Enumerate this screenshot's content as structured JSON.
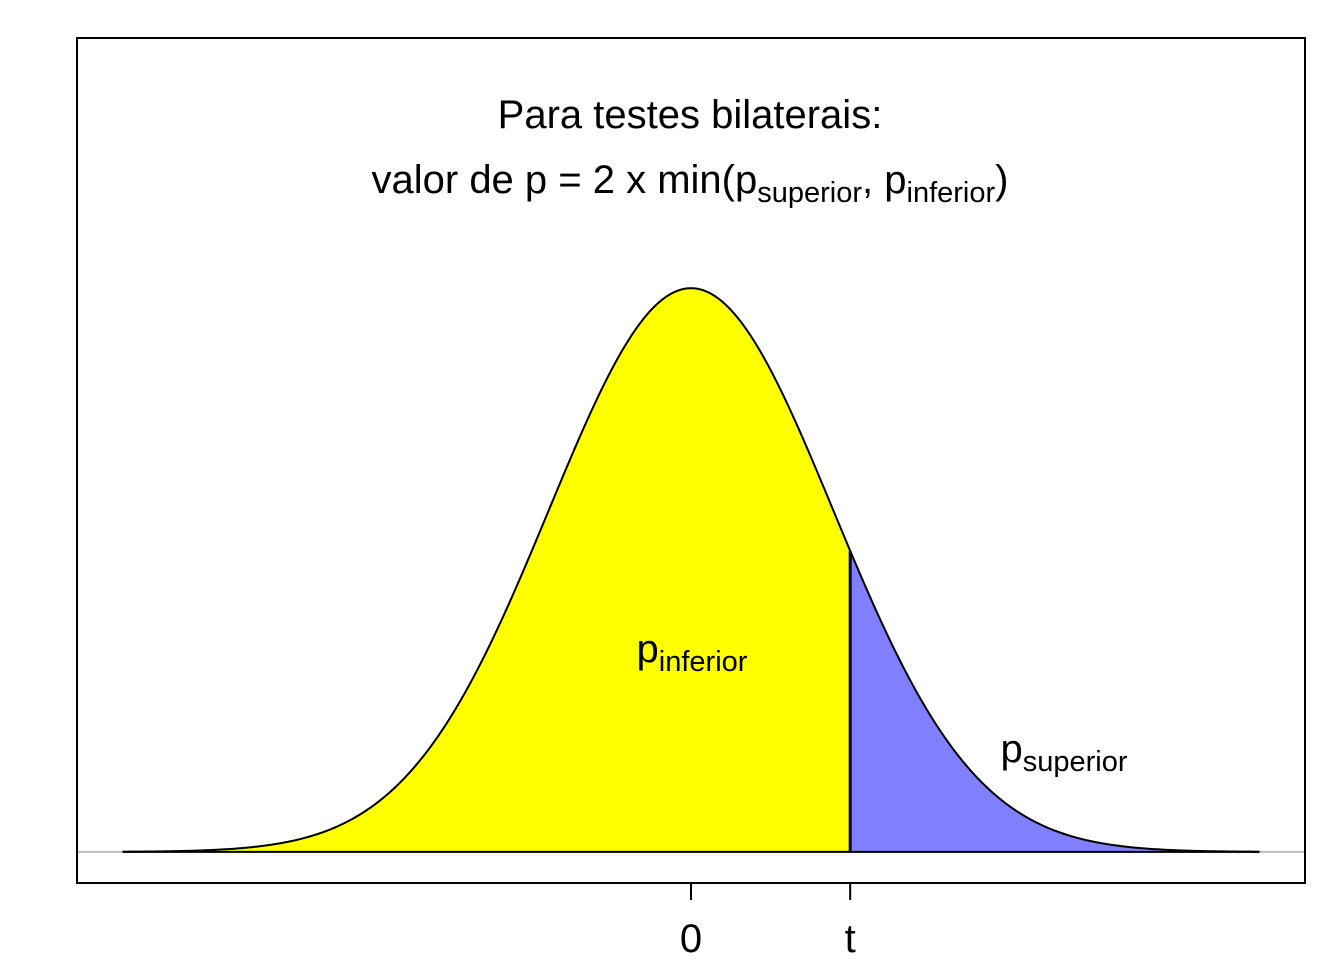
{
  "chart_data": {
    "type": "density",
    "distribution": "normal",
    "mean": 0,
    "sd": 1,
    "curve_range": [
      -4,
      4
    ],
    "t": 1.12,
    "title": "Para testes bilaterais:",
    "subtitle": {
      "parts": [
        "valor de p = 2 x min(p",
        "superior",
        ", p",
        "inferior",
        ")"
      ]
    },
    "annotations": {
      "lower": {
        "main": "p",
        "sub": "inferior"
      },
      "upper": {
        "main": "p",
        "sub": "superior"
      }
    },
    "lower_color": "#ffff00",
    "upper_color": "#8080ff",
    "baseline_color": "#bebebe",
    "xlim": [
      -4.32,
      4.32
    ],
    "ylim": [
      -0.022,
      0.576
    ],
    "xticks": [
      0,
      {
        "value": 1.12,
        "label": "t"
      }
    ]
  }
}
